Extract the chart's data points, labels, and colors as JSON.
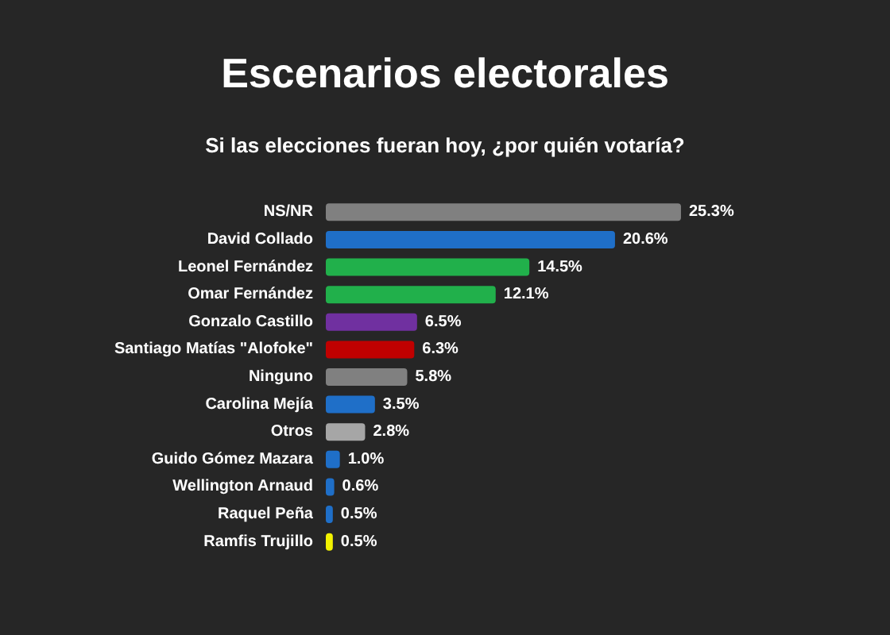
{
  "chart_data": {
    "type": "bar",
    "orientation": "horizontal",
    "title": "Escenarios electorales",
    "subtitle": "Si las elecciones fueran hoy, ¿por quién votaría?",
    "categories": [
      "NS/NR",
      "David Collado",
      "Leonel Fernández",
      "Omar Fernández",
      "Gonzalo Castillo",
      "Santiago Matías \"Alofoke\"",
      "Ninguno",
      "Carolina Mejía",
      "Otros",
      "Guido Gómez Mazara",
      "Wellington Arnaud",
      "Raquel Peña",
      "Ramfis Trujillo"
    ],
    "values": [
      25.3,
      20.6,
      14.5,
      12.1,
      6.5,
      6.3,
      5.8,
      3.5,
      2.8,
      1.0,
      0.6,
      0.5,
      0.5
    ],
    "value_labels": [
      "25.3%",
      "20.6%",
      "14.5%",
      "12.1%",
      "6.5%",
      "6.3%",
      "5.8%",
      "3.5%",
      "2.8%",
      "1.0%",
      "0.6%",
      "0.5%",
      "0.5%"
    ],
    "colors": [
      "#808080",
      "#1f6fc8",
      "#21b04b",
      "#21b04b",
      "#7030a0",
      "#c00000",
      "#808080",
      "#1f6fc8",
      "#a6a6a6",
      "#1f6fc8",
      "#1f6fc8",
      "#1f6fc8",
      "#f2f200"
    ]
  }
}
